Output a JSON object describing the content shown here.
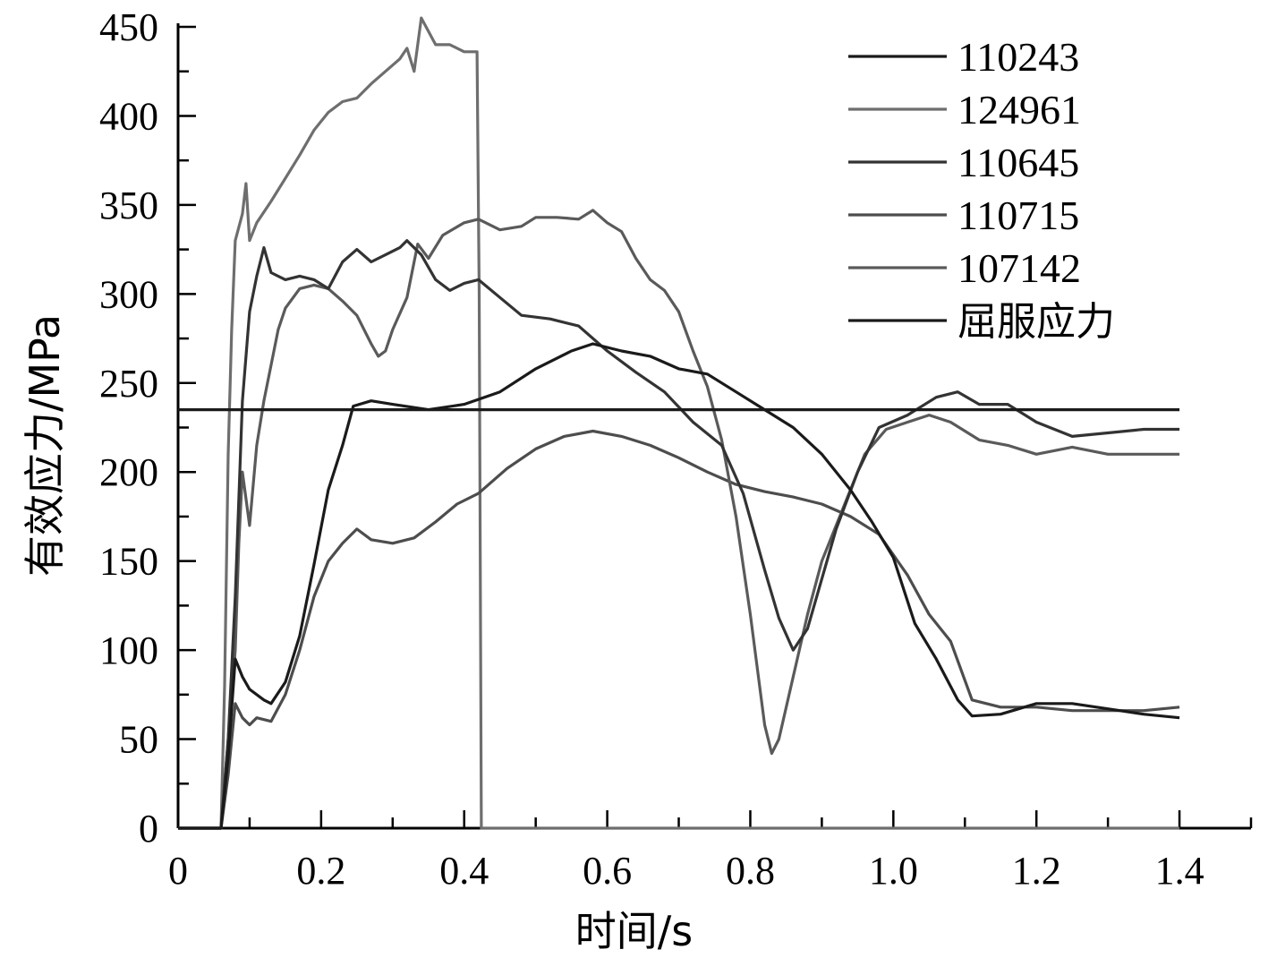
{
  "chart_data": {
    "type": "line",
    "title": "",
    "xlabel": "时间/s",
    "ylabel": "有效应力/MPa",
    "xlim": [
      0,
      1.5
    ],
    "ylim": [
      0,
      450
    ],
    "xticks": [
      0,
      0.2,
      0.4,
      0.6,
      0.8,
      1.0,
      1.2,
      1.4
    ],
    "xtick_labels": [
      "0",
      "0.2",
      "0.4",
      "0.6",
      "0.8",
      "1.0",
      "1.2",
      "1.4"
    ],
    "yticks": [
      0,
      50,
      100,
      150,
      200,
      250,
      300,
      350,
      400,
      450
    ],
    "ytick_labels": [
      "0",
      "50",
      "100",
      "150",
      "200",
      "250",
      "300",
      "350",
      "400",
      "450"
    ],
    "legend_position": "top-right",
    "grid": false,
    "series": [
      {
        "name": "110243",
        "color": "#1a1a1a",
        "points": [
          [
            0,
            0
          ],
          [
            0.06,
            0
          ],
          [
            0.07,
            40
          ],
          [
            0.08,
            95
          ],
          [
            0.09,
            85
          ],
          [
            0.1,
            78
          ],
          [
            0.12,
            72
          ],
          [
            0.13,
            70
          ],
          [
            0.15,
            82
          ],
          [
            0.17,
            108
          ],
          [
            0.19,
            148
          ],
          [
            0.21,
            190
          ],
          [
            0.23,
            215
          ],
          [
            0.245,
            237
          ],
          [
            0.27,
            240
          ],
          [
            0.3,
            238
          ],
          [
            0.35,
            235
          ],
          [
            0.4,
            238
          ],
          [
            0.45,
            245
          ],
          [
            0.5,
            258
          ],
          [
            0.55,
            268
          ],
          [
            0.58,
            272
          ],
          [
            0.62,
            268
          ],
          [
            0.66,
            265
          ],
          [
            0.7,
            258
          ],
          [
            0.74,
            255
          ],
          [
            0.78,
            245
          ],
          [
            0.82,
            235
          ],
          [
            0.86,
            225
          ],
          [
            0.9,
            210
          ],
          [
            0.94,
            190
          ],
          [
            0.97,
            172
          ],
          [
            1.0,
            152
          ],
          [
            1.03,
            115
          ],
          [
            1.06,
            95
          ],
          [
            1.09,
            72
          ],
          [
            1.11,
            63
          ],
          [
            1.15,
            64
          ],
          [
            1.2,
            70
          ],
          [
            1.25,
            70
          ],
          [
            1.3,
            67
          ],
          [
            1.35,
            64
          ],
          [
            1.4,
            62
          ]
        ]
      },
      {
        "name": "124961",
        "color": "#6e6e6e",
        "points": [
          [
            0,
            0
          ],
          [
            0.06,
            0
          ],
          [
            0.065,
            80
          ],
          [
            0.07,
            210
          ],
          [
            0.075,
            280
          ],
          [
            0.08,
            330
          ],
          [
            0.09,
            345
          ],
          [
            0.095,
            362
          ],
          [
            0.1,
            330
          ],
          [
            0.11,
            340
          ],
          [
            0.13,
            352
          ],
          [
            0.15,
            365
          ],
          [
            0.17,
            378
          ],
          [
            0.19,
            392
          ],
          [
            0.21,
            402
          ],
          [
            0.23,
            408
          ],
          [
            0.25,
            410
          ],
          [
            0.27,
            418
          ],
          [
            0.29,
            425
          ],
          [
            0.31,
            432
          ],
          [
            0.32,
            438
          ],
          [
            0.33,
            425
          ],
          [
            0.34,
            455
          ],
          [
            0.36,
            440
          ],
          [
            0.38,
            440
          ],
          [
            0.4,
            436
          ],
          [
            0.415,
            436
          ],
          [
            0.418,
            436
          ],
          [
            0.421,
            300
          ],
          [
            0.424,
            0
          ],
          [
            1.4,
            0
          ]
        ]
      },
      {
        "name": "110645",
        "color": "#333333",
        "points": [
          [
            0,
            0
          ],
          [
            0.06,
            0
          ],
          [
            0.07,
            50
          ],
          [
            0.08,
            130
          ],
          [
            0.09,
            240
          ],
          [
            0.1,
            290
          ],
          [
            0.11,
            310
          ],
          [
            0.12,
            326
          ],
          [
            0.13,
            312
          ],
          [
            0.15,
            308
          ],
          [
            0.17,
            310
          ],
          [
            0.19,
            308
          ],
          [
            0.21,
            303
          ],
          [
            0.23,
            318
          ],
          [
            0.25,
            325
          ],
          [
            0.27,
            318
          ],
          [
            0.29,
            322
          ],
          [
            0.31,
            326
          ],
          [
            0.32,
            330
          ],
          [
            0.34,
            322
          ],
          [
            0.36,
            308
          ],
          [
            0.38,
            302
          ],
          [
            0.4,
            306
          ],
          [
            0.42,
            308
          ],
          [
            0.45,
            298
          ],
          [
            0.48,
            288
          ],
          [
            0.52,
            286
          ],
          [
            0.56,
            282
          ],
          [
            0.6,
            268
          ],
          [
            0.64,
            256
          ],
          [
            0.68,
            245
          ],
          [
            0.72,
            228
          ],
          [
            0.76,
            215
          ],
          [
            0.79,
            188
          ],
          [
            0.82,
            145
          ],
          [
            0.84,
            118
          ],
          [
            0.86,
            100
          ],
          [
            0.88,
            112
          ],
          [
            0.9,
            140
          ],
          [
            0.92,
            168
          ],
          [
            0.95,
            200
          ],
          [
            0.98,
            225
          ],
          [
            1.02,
            232
          ],
          [
            1.06,
            242
          ],
          [
            1.09,
            245
          ],
          [
            1.12,
            238
          ],
          [
            1.16,
            238
          ],
          [
            1.2,
            228
          ],
          [
            1.25,
            220
          ],
          [
            1.3,
            222
          ],
          [
            1.35,
            224
          ],
          [
            1.4,
            224
          ]
        ]
      },
      {
        "name": "110715",
        "color": "#4d4d4d",
        "points": [
          [
            0,
            0
          ],
          [
            0.06,
            0
          ],
          [
            0.07,
            30
          ],
          [
            0.08,
            70
          ],
          [
            0.09,
            62
          ],
          [
            0.1,
            58
          ],
          [
            0.11,
            62
          ],
          [
            0.13,
            60
          ],
          [
            0.15,
            75
          ],
          [
            0.17,
            100
          ],
          [
            0.19,
            130
          ],
          [
            0.21,
            150
          ],
          [
            0.23,
            160
          ],
          [
            0.25,
            168
          ],
          [
            0.27,
            162
          ],
          [
            0.3,
            160
          ],
          [
            0.33,
            163
          ],
          [
            0.36,
            172
          ],
          [
            0.39,
            182
          ],
          [
            0.42,
            188
          ],
          [
            0.46,
            202
          ],
          [
            0.5,
            213
          ],
          [
            0.54,
            220
          ],
          [
            0.58,
            223
          ],
          [
            0.62,
            220
          ],
          [
            0.66,
            215
          ],
          [
            0.7,
            208
          ],
          [
            0.74,
            200
          ],
          [
            0.78,
            193
          ],
          [
            0.82,
            189
          ],
          [
            0.86,
            186
          ],
          [
            0.9,
            182
          ],
          [
            0.94,
            175
          ],
          [
            0.98,
            165
          ],
          [
            1.02,
            142
          ],
          [
            1.05,
            120
          ],
          [
            1.08,
            105
          ],
          [
            1.11,
            72
          ],
          [
            1.15,
            68
          ],
          [
            1.2,
            68
          ],
          [
            1.25,
            66
          ],
          [
            1.3,
            66
          ],
          [
            1.35,
            66
          ],
          [
            1.4,
            68
          ]
        ]
      },
      {
        "name": "107142",
        "color": "#5a5a5a",
        "points": [
          [
            0,
            0
          ],
          [
            0.06,
            0
          ],
          [
            0.07,
            50
          ],
          [
            0.08,
            100
          ],
          [
            0.085,
            160
          ],
          [
            0.09,
            200
          ],
          [
            0.1,
            170
          ],
          [
            0.11,
            215
          ],
          [
            0.12,
            240
          ],
          [
            0.13,
            260
          ],
          [
            0.14,
            280
          ],
          [
            0.15,
            292
          ],
          [
            0.17,
            303
          ],
          [
            0.19,
            305
          ],
          [
            0.21,
            303
          ],
          [
            0.23,
            296
          ],
          [
            0.25,
            288
          ],
          [
            0.27,
            272
          ],
          [
            0.28,
            265
          ],
          [
            0.29,
            268
          ],
          [
            0.3,
            280
          ],
          [
            0.32,
            298
          ],
          [
            0.335,
            328
          ],
          [
            0.35,
            320
          ],
          [
            0.37,
            333
          ],
          [
            0.4,
            340
          ],
          [
            0.42,
            342
          ],
          [
            0.45,
            336
          ],
          [
            0.48,
            338
          ],
          [
            0.5,
            343
          ],
          [
            0.53,
            343
          ],
          [
            0.56,
            342
          ],
          [
            0.58,
            347
          ],
          [
            0.6,
            340
          ],
          [
            0.62,
            335
          ],
          [
            0.64,
            320
          ],
          [
            0.66,
            308
          ],
          [
            0.68,
            302
          ],
          [
            0.7,
            290
          ],
          [
            0.72,
            268
          ],
          [
            0.74,
            248
          ],
          [
            0.76,
            218
          ],
          [
            0.78,
            175
          ],
          [
            0.8,
            120
          ],
          [
            0.82,
            58
          ],
          [
            0.83,
            42
          ],
          [
            0.84,
            50
          ],
          [
            0.86,
            85
          ],
          [
            0.88,
            120
          ],
          [
            0.9,
            150
          ],
          [
            0.93,
            180
          ],
          [
            0.96,
            210
          ],
          [
            0.99,
            224
          ],
          [
            1.02,
            228
          ],
          [
            1.05,
            232
          ],
          [
            1.08,
            228
          ],
          [
            1.12,
            218
          ],
          [
            1.16,
            215
          ],
          [
            1.2,
            210
          ],
          [
            1.25,
            214
          ],
          [
            1.3,
            210
          ],
          [
            1.35,
            210
          ],
          [
            1.4,
            210
          ]
        ]
      },
      {
        "name": "屈服应力",
        "color": "#1a1a1a",
        "points": [
          [
            0,
            235
          ],
          [
            1.4,
            235
          ]
        ]
      }
    ]
  }
}
